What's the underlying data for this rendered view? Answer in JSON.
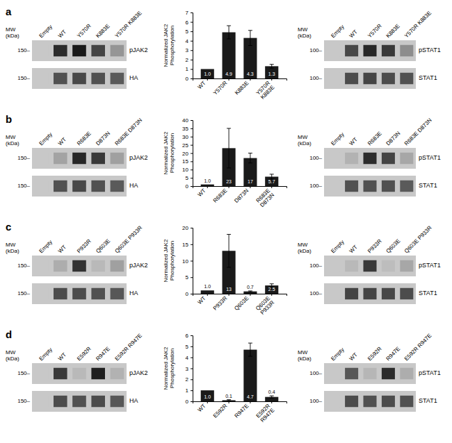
{
  "chart_data": [
    {
      "type": "blot",
      "title": "a",
      "categories": [
        "Empty",
        "WT",
        "Y570R",
        "K883E",
        "Y570R K883E"
      ],
      "row_labels": [
        "pJAK2",
        "HA"
      ],
      "mw_labels": [
        "150–",
        "150–"
      ],
      "ylabel": "MW\n(kDa)",
      "cells": [
        [
          0.0,
          0.85,
          0.95,
          0.72,
          0.28
        ],
        [
          0.0,
          0.65,
          0.7,
          0.65,
          0.6
        ]
      ],
      "color": "#c8c8c8"
    },
    {
      "type": "bar",
      "categories": [
        "WT",
        "Y570R",
        "K883E",
        "Y570R\nK883E"
      ],
      "values": [
        1.0,
        4.9,
        4.3,
        1.3
      ],
      "value_labels": [
        "1.0",
        "4.9",
        "4.3",
        "1.3"
      ],
      "errors": [
        0.0,
        0.7,
        0.8,
        0.2
      ],
      "ylim": [
        0,
        7
      ],
      "yticks": [
        0,
        1,
        2,
        3,
        4,
        5,
        6,
        7
      ],
      "ylabel": "Normalized JAK2\nPhosphorylation",
      "color": "#1a1a1a",
      "data_labels": true
    },
    {
      "type": "blot",
      "categories": [
        "Empty",
        "WT",
        "Y570R",
        "K883E",
        "Y570R K883E"
      ],
      "row_labels": [
        "pSTAT1",
        "STAT1"
      ],
      "mw_labels": [
        "100–",
        "100–"
      ],
      "ylabel": "MW\n(kDa)",
      "cells": [
        [
          0.0,
          0.7,
          0.88,
          0.78,
          0.32
        ],
        [
          0.0,
          0.68,
          0.72,
          0.68,
          0.65
        ]
      ],
      "color": "#c8c8c8"
    },
    {
      "type": "blot",
      "title": "b",
      "categories": [
        "Empty",
        "WT",
        "R683E",
        "D873N",
        "R683E D873N"
      ],
      "row_labels": [
        "pJAK2",
        "HA"
      ],
      "mw_labels": [
        "150–",
        "150–"
      ],
      "ylabel": "MW\n(kDa)",
      "cells": [
        [
          0.0,
          0.2,
          0.88,
          0.78,
          0.22
        ],
        [
          0.0,
          0.65,
          0.7,
          0.65,
          0.6
        ]
      ],
      "color": "#c8c8c8"
    },
    {
      "type": "bar",
      "categories": [
        "WT",
        "R683E",
        "D873N",
        "R683E\nD873N"
      ],
      "values": [
        1.0,
        23,
        17,
        5.7
      ],
      "value_labels": [
        "1.0",
        "23",
        "17",
        "5.7"
      ],
      "errors": [
        0.0,
        12,
        3,
        1.5
      ],
      "ylim": [
        0,
        40
      ],
      "yticks": [
        0,
        5,
        10,
        15,
        20,
        25,
        30,
        35,
        40
      ],
      "ylabel": "Normalized JAK2\nPhosphorylation",
      "color": "#1a1a1a",
      "data_labels": true
    },
    {
      "type": "blot",
      "categories": [
        "Empty",
        "WT",
        "R683E",
        "D873N",
        "R683E D873N"
      ],
      "row_labels": [
        "pSTAT1",
        "STAT1"
      ],
      "mw_labels": [
        "100–",
        "100–"
      ],
      "ylabel": "MW\n(kDa)",
      "cells": [
        [
          0.0,
          0.12,
          0.85,
          0.72,
          0.18
        ],
        [
          0.0,
          0.65,
          0.65,
          0.65,
          0.6
        ]
      ],
      "color": "#c8c8c8"
    },
    {
      "type": "blot",
      "title": "c",
      "categories": [
        "Empty",
        "WT",
        "P933R",
        "Q603E",
        "Q603E P933R"
      ],
      "row_labels": [
        "pJAK2",
        "HA"
      ],
      "mw_labels": [
        "150–",
        "150–"
      ],
      "ylabel": "MW\n(kDa)",
      "cells": [
        [
          0.0,
          0.15,
          0.82,
          0.08,
          0.22
        ],
        [
          0.0,
          0.68,
          0.68,
          0.65,
          0.62
        ]
      ],
      "color": "#c8c8c8"
    },
    {
      "type": "bar",
      "categories": [
        "WT",
        "P933R",
        "Q603E",
        "Q603E\nP933R"
      ],
      "values": [
        1.0,
        13,
        0.7,
        2.5
      ],
      "value_labels": [
        "1.0",
        "13",
        "0.7",
        "2.5"
      ],
      "errors": [
        0.0,
        5,
        0.15,
        0.5
      ],
      "ylim": [
        0,
        20
      ],
      "yticks": [
        0,
        5,
        10,
        15,
        20
      ],
      "ylabel": "Normalized JAK2\nPhosphorylation",
      "color": "#1a1a1a",
      "data_labels": true
    },
    {
      "type": "blot",
      "categories": [
        "Empty",
        "WT",
        "P933R",
        "Q603E",
        "Q603E P933R"
      ],
      "row_labels": [
        "pSTAT1",
        "STAT1"
      ],
      "mw_labels": [
        "100–",
        "100–"
      ],
      "ylabel": "MW\n(kDa)",
      "cells": [
        [
          0.0,
          0.08,
          0.78,
          0.06,
          0.18
        ],
        [
          0.0,
          0.72,
          0.72,
          0.7,
          0.68
        ]
      ],
      "color": "#c8c8c8"
    },
    {
      "type": "blot",
      "title": "d",
      "categories": [
        "Empty",
        "WT",
        "E592R",
        "R947E",
        "E592R R947E"
      ],
      "row_labels": [
        "pJAK2",
        "HA"
      ],
      "mw_labels": [
        "150–",
        "150–"
      ],
      "ylabel": "MW\n(kDa)",
      "cells": [
        [
          0.0,
          0.78,
          0.08,
          0.92,
          0.12
        ],
        [
          0.0,
          0.68,
          0.65,
          0.68,
          0.62
        ]
      ],
      "color": "#c8c8c8"
    },
    {
      "type": "bar",
      "categories": [
        "WT",
        "E592R",
        "R947E",
        "E592R\nR947E"
      ],
      "values": [
        1.0,
        0.1,
        4.7,
        0.4
      ],
      "value_labels": [
        "1.0",
        "0.1",
        "4.7",
        "0.4"
      ],
      "errors": [
        0.0,
        0.05,
        0.6,
        0.1
      ],
      "ylim": [
        0,
        6
      ],
      "yticks": [
        0,
        1,
        2,
        3,
        4,
        5,
        6
      ],
      "ylabel": "Normalized JAK2\nPhosphorylation",
      "color": "#1a1a1a",
      "data_labels": true
    },
    {
      "type": "blot",
      "categories": [
        "Empty",
        "WT",
        "E592R",
        "R947E",
        "E592R R947E"
      ],
      "row_labels": [
        "pSTAT1",
        "STAT1"
      ],
      "mw_labels": [
        "100–",
        "100–"
      ],
      "ylabel": "MW\n(kDa)",
      "cells": [
        [
          0.0,
          0.62,
          0.1,
          0.85,
          0.15
        ],
        [
          0.0,
          0.68,
          0.65,
          0.68,
          0.65
        ]
      ],
      "color": "#c8c8c8"
    }
  ]
}
